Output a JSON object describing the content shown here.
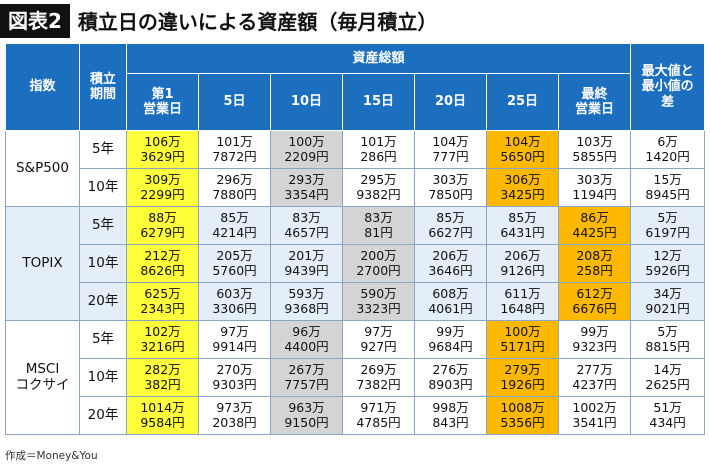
{
  "header": {
    "badge": "図表2",
    "title": "積立日の違いによる資産額（毎月積立）"
  },
  "table": {
    "col_index": "指数",
    "col_period": [
      "積立",
      "期間"
    ],
    "group_header": "資産総額",
    "col_diff": [
      "最大値と",
      "最小値の",
      "差"
    ],
    "day_columns": [
      [
        "第1",
        "営業日"
      ],
      [
        "5日"
      ],
      [
        "10日"
      ],
      [
        "15日"
      ],
      [
        "20日"
      ],
      [
        "25日"
      ],
      [
        "最終",
        "営業日"
      ]
    ],
    "groups": [
      {
        "name": [
          "S&P500"
        ],
        "rows": [
          {
            "period": "5年",
            "values": [
              [
                "106万",
                "3629円"
              ],
              [
                "101万",
                "7872円"
              ],
              [
                "100万",
                "2209円"
              ],
              [
                "101万",
                "286円"
              ],
              [
                "104万",
                "777円"
              ],
              [
                "104万",
                "5650円"
              ],
              [
                "103万",
                "5855円"
              ]
            ],
            "diff": [
              "6万",
              "1420円"
            ],
            "max_col": 0,
            "min_col": 2,
            "highlight_col": 5
          },
          {
            "period": "10年",
            "values": [
              [
                "309万",
                "2299円"
              ],
              [
                "296万",
                "7880円"
              ],
              [
                "293万",
                "3354円"
              ],
              [
                "295万",
                "9382円"
              ],
              [
                "303万",
                "7850円"
              ],
              [
                "306万",
                "3425円"
              ],
              [
                "303万",
                "1194円"
              ]
            ],
            "diff": [
              "15万",
              "8945円"
            ],
            "max_col": 0,
            "min_col": 2,
            "highlight_col": 5
          }
        ]
      },
      {
        "name": [
          "TOPIX"
        ],
        "rows": [
          {
            "period": "5年",
            "values": [
              [
                "88万",
                "6279円"
              ],
              [
                "85万",
                "4214円"
              ],
              [
                "83万",
                "4657円"
              ],
              [
                "83万",
                "81円"
              ],
              [
                "85万",
                "6627円"
              ],
              [
                "85万",
                "6431円"
              ],
              [
                "86万",
                "4425円"
              ]
            ],
            "diff": [
              "5万",
              "6197円"
            ],
            "max_col": 0,
            "min_col": 3,
            "highlight_col": 6
          },
          {
            "period": "10年",
            "values": [
              [
                "212万",
                "8626円"
              ],
              [
                "205万",
                "5760円"
              ],
              [
                "201万",
                "9439円"
              ],
              [
                "200万",
                "2700円"
              ],
              [
                "206万",
                "3646円"
              ],
              [
                "206万",
                "9126円"
              ],
              [
                "208万",
                "258円"
              ]
            ],
            "diff": [
              "12万",
              "5926円"
            ],
            "max_col": 0,
            "min_col": 3,
            "highlight_col": 6
          },
          {
            "period": "20年",
            "values": [
              [
                "625万",
                "2343円"
              ],
              [
                "603万",
                "3306円"
              ],
              [
                "593万",
                "9368円"
              ],
              [
                "590万",
                "3323円"
              ],
              [
                "608万",
                "4061円"
              ],
              [
                "611万",
                "1648円"
              ],
              [
                "612万",
                "6676円"
              ]
            ],
            "diff": [
              "34万",
              "9021円"
            ],
            "max_col": 0,
            "min_col": 3,
            "highlight_col": 6
          }
        ]
      },
      {
        "name": [
          "MSCI",
          "コクサイ"
        ],
        "rows": [
          {
            "period": "5年",
            "values": [
              [
                "102万",
                "3216円"
              ],
              [
                "97万",
                "9914円"
              ],
              [
                "96万",
                "4400円"
              ],
              [
                "97万",
                "927円"
              ],
              [
                "99万",
                "9684円"
              ],
              [
                "100万",
                "5171円"
              ],
              [
                "99万",
                "9323円"
              ]
            ],
            "diff": [
              "5万",
              "8815円"
            ],
            "max_col": 0,
            "min_col": 2,
            "highlight_col": 5
          },
          {
            "period": "10年",
            "values": [
              [
                "282万",
                "382円"
              ],
              [
                "270万",
                "9303円"
              ],
              [
                "267万",
                "7757円"
              ],
              [
                "269万",
                "7382円"
              ],
              [
                "276万",
                "8903円"
              ],
              [
                "279万",
                "1926円"
              ],
              [
                "277万",
                "4237円"
              ]
            ],
            "diff": [
              "14万",
              "2625円"
            ],
            "max_col": 0,
            "min_col": 2,
            "highlight_col": 5
          },
          {
            "period": "20年",
            "values": [
              [
                "1014万",
                "9584円"
              ],
              [
                "973万",
                "2038円"
              ],
              [
                "963万",
                "9150円"
              ],
              [
                "971万",
                "4785円"
              ],
              [
                "998万",
                "843円"
              ],
              [
                "1008万",
                "5356円"
              ],
              [
                "1002万",
                "3541円"
              ]
            ],
            "diff": [
              "51万",
              "434円"
            ],
            "max_col": 0,
            "min_col": 2,
            "highlight_col": 5
          }
        ]
      }
    ]
  },
  "colors": {
    "header_bg": "#1c6fbf",
    "max_highlight": "#ffff3c",
    "min_highlight": "#d4d4d4",
    "second_highlight": "#ffb800",
    "band": "#e3eef8"
  },
  "footer": {
    "credit": "作成＝Money&You"
  }
}
